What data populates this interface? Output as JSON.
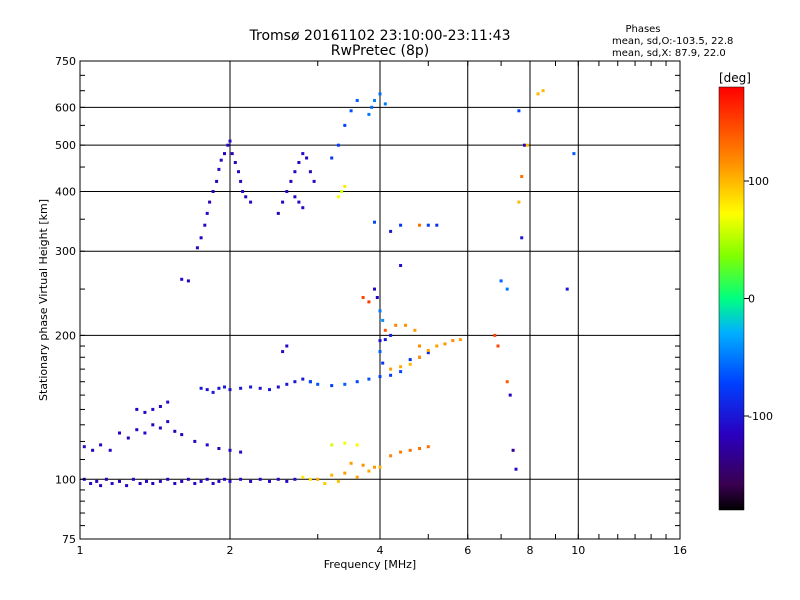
{
  "chart_data": {
    "type": "scatter",
    "title": "Tromsø 20161102 23:10:00-23:11:43",
    "subtitle": "RwPretec (8p)",
    "xlabel": "Frequency [MHz]",
    "ylabel": "Stationary phase Virtual Height [km]",
    "x_scale": "log",
    "y_scale": "log",
    "xlim": [
      1,
      16
    ],
    "ylim": [
      75,
      750
    ],
    "x_ticks": [
      1,
      2,
      4,
      6,
      8,
      10,
      16
    ],
    "x_tick_labels": [
      "1",
      "2",
      "4",
      "6",
      "8",
      "10",
      "16"
    ],
    "y_ticks": [
      75,
      100,
      200,
      300,
      400,
      500,
      600,
      750
    ],
    "y_tick_labels": [
      "75",
      "100",
      "200",
      "300",
      "400",
      "500",
      "600",
      "750"
    ],
    "grid": true,
    "stats": {
      "heading": "Phases",
      "line_o": "mean, sd,O:-103.5, 22.8",
      "line_x": "mean, sd,X:  87.9, 22.0"
    },
    "colorbar": {
      "label": "[deg]",
      "range": [
        -180,
        180
      ],
      "ticks": [
        100,
        0,
        -100
      ],
      "tick_labels": [
        "100",
        "0",
        "-100"
      ],
      "colormap": "rainbow"
    },
    "series": [
      {
        "points": [
          [
            1.02,
            100,
            -115
          ],
          [
            1.05,
            98,
            -110
          ],
          [
            1.08,
            99,
            -118
          ],
          [
            1.1,
            97,
            -112
          ],
          [
            1.13,
            100,
            -120
          ],
          [
            1.16,
            98,
            -108
          ],
          [
            1.2,
            99,
            -115
          ],
          [
            1.24,
            97,
            -113
          ],
          [
            1.28,
            100,
            -110
          ],
          [
            1.32,
            98,
            -117
          ],
          [
            1.36,
            99,
            -112
          ],
          [
            1.4,
            98,
            -115
          ],
          [
            1.45,
            99,
            -110
          ],
          [
            1.5,
            100,
            -114
          ],
          [
            1.55,
            98,
            -112
          ],
          [
            1.6,
            99,
            -118
          ],
          [
            1.65,
            100,
            -115
          ],
          [
            1.7,
            98,
            -110
          ],
          [
            1.75,
            99,
            -113
          ],
          [
            1.8,
            100,
            -112
          ],
          [
            1.85,
            98,
            -110
          ],
          [
            1.9,
            99,
            -115
          ],
          [
            1.95,
            100,
            -112
          ],
          [
            2.0,
            99,
            -110
          ],
          [
            2.1,
            100,
            -108
          ],
          [
            2.2,
            99,
            -112
          ],
          [
            2.3,
            100,
            -110
          ],
          [
            2.4,
            99,
            -108
          ],
          [
            2.5,
            100,
            -110
          ],
          [
            2.6,
            99,
            -112
          ],
          [
            2.7,
            100,
            -105
          ],
          [
            1.02,
            117,
            -110
          ],
          [
            1.06,
            115,
            -115
          ],
          [
            1.1,
            118,
            -112
          ],
          [
            1.15,
            115,
            -110
          ],
          [
            1.2,
            125,
            -115
          ],
          [
            1.25,
            122,
            -118
          ],
          [
            1.3,
            127,
            -112
          ],
          [
            1.35,
            125,
            -110
          ],
          [
            1.4,
            130,
            -115
          ],
          [
            1.45,
            128,
            -112
          ],
          [
            1.5,
            132,
            -110
          ],
          [
            1.55,
            126,
            -118
          ],
          [
            1.6,
            124,
            -115
          ],
          [
            1.7,
            120,
            -112
          ],
          [
            1.8,
            118,
            -110
          ],
          [
            1.9,
            116,
            -115
          ],
          [
            2.0,
            115,
            -112
          ],
          [
            2.1,
            114,
            -110
          ],
          [
            1.3,
            140,
            -115
          ],
          [
            1.35,
            138,
            -112
          ],
          [
            1.4,
            140,
            -110
          ],
          [
            1.45,
            142,
            -115
          ],
          [
            1.5,
            145,
            -110
          ],
          [
            1.75,
            155,
            -100
          ],
          [
            1.8,
            154,
            -105
          ],
          [
            1.85,
            152,
            -98
          ],
          [
            1.9,
            155,
            -102
          ],
          [
            1.95,
            156,
            -100
          ],
          [
            2.0,
            154,
            -105
          ],
          [
            2.1,
            155,
            -100
          ],
          [
            2.2,
            156,
            -98
          ],
          [
            2.3,
            155,
            -102
          ],
          [
            2.4,
            154,
            -100
          ],
          [
            2.5,
            156,
            -105
          ],
          [
            2.6,
            158,
            -100
          ],
          [
            2.7,
            160,
            -102
          ],
          [
            2.8,
            162,
            -100
          ],
          [
            2.9,
            160,
            -98
          ],
          [
            2.9,
            160,
            -70
          ],
          [
            3.0,
            158,
            -65
          ],
          [
            3.2,
            157,
            -75
          ],
          [
            3.4,
            158,
            -60
          ],
          [
            3.6,
            160,
            -70
          ],
          [
            3.8,
            162,
            -65
          ],
          [
            4.0,
            164,
            -70
          ],
          [
            4.2,
            165,
            -75
          ],
          [
            4.4,
            168,
            -70
          ],
          [
            4.6,
            178,
            -80
          ],
          [
            4.8,
            180,
            -85
          ],
          [
            5.0,
            184,
            -90
          ],
          [
            4.0,
            195,
            -105
          ],
          [
            4.1,
            196,
            -100
          ],
          [
            4.2,
            200,
            -95
          ],
          [
            4.2,
            170,
            110
          ],
          [
            4.4,
            172,
            105
          ],
          [
            4.6,
            174,
            100
          ],
          [
            4.8,
            180,
            115
          ],
          [
            5.0,
            186,
            108
          ],
          [
            5.2,
            190,
            110
          ],
          [
            5.4,
            192,
            112
          ],
          [
            5.6,
            195,
            118
          ],
          [
            5.8,
            196,
            110
          ],
          [
            3.0,
            100,
            105
          ],
          [
            3.2,
            102,
            100
          ],
          [
            3.4,
            103,
            110
          ],
          [
            3.6,
            101,
            108
          ],
          [
            3.8,
            104,
            105
          ],
          [
            4.0,
            106,
            100
          ],
          [
            3.5,
            108,
            110
          ],
          [
            3.7,
            107,
            115
          ],
          [
            3.9,
            106,
            112
          ],
          [
            2.8,
            101,
            80
          ],
          [
            2.9,
            100,
            85
          ],
          [
            3.1,
            98,
            92
          ],
          [
            3.3,
            99,
            95
          ],
          [
            4.2,
            112,
            120
          ],
          [
            4.4,
            114,
            125
          ],
          [
            4.6,
            115,
            130
          ],
          [
            4.8,
            116,
            128
          ],
          [
            5.0,
            117,
            130
          ],
          [
            3.2,
            118,
            60
          ],
          [
            3.4,
            119,
            70
          ],
          [
            3.6,
            118,
            75
          ],
          [
            1.72,
            305,
            -110
          ],
          [
            1.75,
            320,
            -115
          ],
          [
            1.78,
            340,
            -112
          ],
          [
            1.8,
            360,
            -110
          ],
          [
            1.82,
            380,
            -118
          ],
          [
            1.85,
            400,
            -112
          ],
          [
            1.88,
            420,
            -115
          ],
          [
            1.9,
            445,
            -110
          ],
          [
            1.92,
            465,
            -113
          ],
          [
            1.95,
            480,
            -115
          ],
          [
            1.98,
            500,
            -112
          ],
          [
            2.0,
            510,
            -110
          ],
          [
            2.02,
            480,
            -115
          ],
          [
            2.05,
            460,
            -118
          ],
          [
            2.08,
            440,
            -112
          ],
          [
            2.1,
            420,
            -110
          ],
          [
            2.12,
            400,
            -108
          ],
          [
            2.15,
            390,
            -112
          ],
          [
            2.2,
            380,
            -110
          ],
          [
            2.5,
            360,
            -115
          ],
          [
            2.55,
            380,
            -112
          ],
          [
            2.6,
            400,
            -110
          ],
          [
            2.65,
            420,
            -118
          ],
          [
            2.7,
            440,
            -112
          ],
          [
            2.75,
            460,
            -115
          ],
          [
            2.8,
            480,
            -110
          ],
          [
            2.85,
            470,
            -115
          ],
          [
            2.9,
            440,
            -112
          ],
          [
            2.95,
            420,
            -110
          ],
          [
            2.7,
            390,
            -115
          ],
          [
            2.75,
            380,
            -112
          ],
          [
            2.8,
            370,
            -110
          ],
          [
            3.2,
            470,
            -80
          ],
          [
            3.3,
            500,
            -75
          ],
          [
            3.4,
            550,
            -70
          ],
          [
            3.5,
            590,
            -65
          ],
          [
            3.6,
            620,
            -60
          ],
          [
            3.3,
            390,
            70
          ],
          [
            3.35,
            400,
            60
          ],
          [
            3.4,
            410,
            80
          ],
          [
            3.8,
            580,
            -50
          ],
          [
            3.85,
            600,
            -55
          ],
          [
            3.9,
            620,
            -45
          ],
          [
            4.0,
            640,
            -55
          ],
          [
            4.1,
            610,
            -50
          ],
          [
            3.9,
            345,
            -70
          ],
          [
            4.2,
            330,
            -100
          ],
          [
            4.4,
            280,
            -105
          ],
          [
            4.4,
            340,
            -80
          ],
          [
            4.8,
            340,
            130
          ],
          [
            5.0,
            340,
            -75
          ],
          [
            5.2,
            340,
            -85
          ],
          [
            3.9,
            250,
            -110
          ],
          [
            3.95,
            240,
            -115
          ],
          [
            4.0,
            225,
            -50
          ],
          [
            4.05,
            215,
            -40
          ],
          [
            4.0,
            185,
            -60
          ],
          [
            4.05,
            175,
            -80
          ],
          [
            3.7,
            240,
            150
          ],
          [
            3.8,
            235,
            155
          ],
          [
            4.1,
            205,
            140
          ],
          [
            4.3,
            210,
            120
          ],
          [
            4.5,
            210,
            115
          ],
          [
            4.7,
            205,
            110
          ],
          [
            4.8,
            190,
            118
          ],
          [
            7.0,
            260,
            -60
          ],
          [
            7.2,
            250,
            -50
          ],
          [
            7.2,
            160,
            140
          ],
          [
            7.3,
            150,
            -115
          ],
          [
            7.4,
            115,
            -130
          ],
          [
            7.5,
            105,
            -110
          ],
          [
            7.6,
            380,
            100
          ],
          [
            7.7,
            430,
            130
          ],
          [
            7.8,
            500,
            -120
          ],
          [
            7.9,
            500,
            100
          ],
          [
            7.7,
            320,
            -100
          ],
          [
            7.6,
            590,
            -70
          ],
          [
            8.3,
            640,
            100
          ],
          [
            8.5,
            650,
            100
          ],
          [
            9.5,
            250,
            -100
          ],
          [
            9.8,
            480,
            -60
          ],
          [
            6.8,
            200,
            150
          ],
          [
            6.9,
            190,
            150
          ],
          [
            1.6,
            262,
            -110
          ],
          [
            1.65,
            260,
            -115
          ],
          [
            2.55,
            185,
            -110
          ],
          [
            2.6,
            190,
            -112
          ]
        ]
      }
    ]
  }
}
